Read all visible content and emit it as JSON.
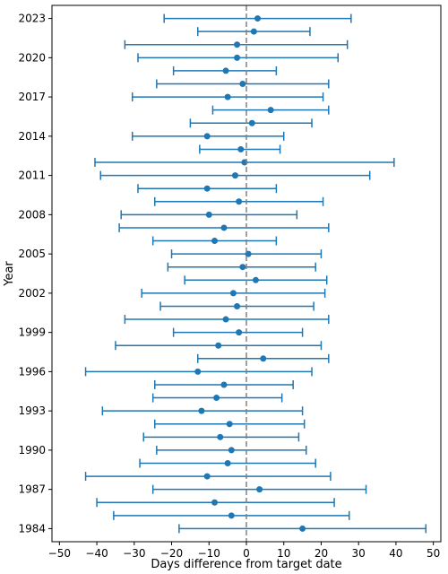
{
  "chart_data": {
    "type": "errorbar",
    "title": "",
    "xlabel": "Days difference from target date",
    "ylabel": "Year",
    "xlim": [
      -52,
      52
    ],
    "ylim": [
      1983,
      2024
    ],
    "xticks": [
      -50,
      -40,
      -30,
      -20,
      -10,
      0,
      10,
      20,
      30,
      40,
      50
    ],
    "xtick_labels": [
      "−50",
      "−40",
      "−30",
      "−20",
      "−10",
      "0",
      "10",
      "20",
      "30",
      "40",
      "50"
    ],
    "yticks": [
      1984,
      1987,
      1990,
      1993,
      1996,
      1999,
      2002,
      2005,
      2008,
      2011,
      2014,
      2017,
      2020,
      2023
    ],
    "ytick_labels": [
      "1984",
      "1987",
      "1990",
      "1993",
      "1996",
      "1999",
      "2002",
      "2005",
      "2008",
      "2011",
      "2014",
      "2017",
      "2020",
      "2023"
    ],
    "reference_line": {
      "x": 0,
      "style": "dashed",
      "color": "#808080"
    },
    "grid": false,
    "legend": "none",
    "color": "#1f77b4",
    "points": [
      {
        "year": 1984,
        "mean": 15,
        "low": -18,
        "high": 48
      },
      {
        "year": 1985,
        "mean": -4,
        "low": -35.5,
        "high": 27.5
      },
      {
        "year": 1986,
        "mean": -8.5,
        "low": -40,
        "high": 23.5
      },
      {
        "year": 1987,
        "mean": 3.5,
        "low": -25,
        "high": 32
      },
      {
        "year": 1988,
        "mean": -10.5,
        "low": -43,
        "high": 22.5
      },
      {
        "year": 1989,
        "mean": -5,
        "low": -28.5,
        "high": 18.5
      },
      {
        "year": 1990,
        "mean": -4,
        "low": -24,
        "high": 16
      },
      {
        "year": 1991,
        "mean": -7,
        "low": -27.5,
        "high": 14
      },
      {
        "year": 1992,
        "mean": -4.5,
        "low": -24.5,
        "high": 15.5
      },
      {
        "year": 1993,
        "mean": -12,
        "low": -38.5,
        "high": 15
      },
      {
        "year": 1994,
        "mean": -8,
        "low": -25,
        "high": 9.5
      },
      {
        "year": 1995,
        "mean": -6,
        "low": -24.5,
        "high": 12.5
      },
      {
        "year": 1996,
        "mean": -13,
        "low": -43,
        "high": 17.5
      },
      {
        "year": 1997,
        "mean": 4.5,
        "low": -13,
        "high": 22
      },
      {
        "year": 1998,
        "mean": -7.5,
        "low": -35,
        "high": 20
      },
      {
        "year": 1999,
        "mean": -2,
        "low": -19.5,
        "high": 15
      },
      {
        "year": 2000,
        "mean": -5.5,
        "low": -32.5,
        "high": 22
      },
      {
        "year": 2001,
        "mean": -2.5,
        "low": -23,
        "high": 18
      },
      {
        "year": 2002,
        "mean": -3.5,
        "low": -28,
        "high": 21
      },
      {
        "year": 2003,
        "mean": 2.5,
        "low": -16.5,
        "high": 21.5
      },
      {
        "year": 2004,
        "mean": -1,
        "low": -21,
        "high": 18.5
      },
      {
        "year": 2005,
        "mean": 0.5,
        "low": -20,
        "high": 20
      },
      {
        "year": 2006,
        "mean": -8.5,
        "low": -25,
        "high": 8
      },
      {
        "year": 2007,
        "mean": -6,
        "low": -34,
        "high": 22
      },
      {
        "year": 2008,
        "mean": -10,
        "low": -33.5,
        "high": 13.5
      },
      {
        "year": 2009,
        "mean": -2,
        "low": -24.5,
        "high": 20.5
      },
      {
        "year": 2010,
        "mean": -10.5,
        "low": -29,
        "high": 8
      },
      {
        "year": 2011,
        "mean": -3,
        "low": -39,
        "high": 33
      },
      {
        "year": 2012,
        "mean": -0.5,
        "low": -40.5,
        "high": 39.5
      },
      {
        "year": 2013,
        "mean": -1.5,
        "low": -12.5,
        "high": 9
      },
      {
        "year": 2014,
        "mean": -10.5,
        "low": -30.5,
        "high": 10
      },
      {
        "year": 2015,
        "mean": 1.5,
        "low": -15,
        "high": 17.5
      },
      {
        "year": 2016,
        "mean": 6.5,
        "low": -9,
        "high": 22
      },
      {
        "year": 2017,
        "mean": -5,
        "low": -30.5,
        "high": 20.5
      },
      {
        "year": 2018,
        "mean": -1,
        "low": -24,
        "high": 22
      },
      {
        "year": 2019,
        "mean": -5.5,
        "low": -19.5,
        "high": 8
      },
      {
        "year": 2020,
        "mean": -2.5,
        "low": -29,
        "high": 24.5
      },
      {
        "year": 2021,
        "mean": -2.5,
        "low": -32.5,
        "high": 27
      },
      {
        "year": 2022,
        "mean": 2,
        "low": -13,
        "high": 17
      },
      {
        "year": 2023,
        "mean": 3,
        "low": -22,
        "high": 28
      }
    ]
  }
}
